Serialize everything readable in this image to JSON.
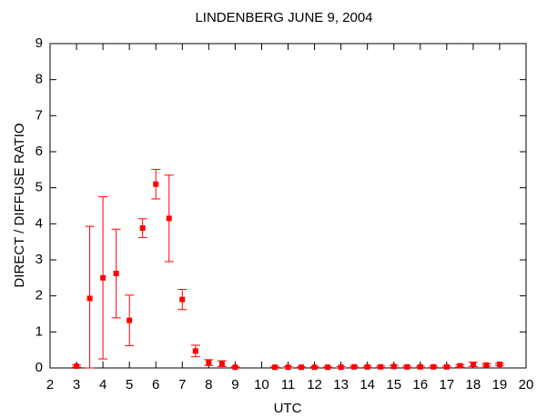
{
  "chart_data": {
    "type": "scatter",
    "title": "LINDENBERG JUNE 9, 2004",
    "x_label": "UTC",
    "y_label": "DIRECT / DIFFUSE RATIO",
    "x": [
      3,
      3.5,
      4,
      4.5,
      5,
      5.5,
      6,
      6.5,
      7,
      7.5,
      8,
      8.5,
      9,
      10.5,
      11,
      11.5,
      12,
      12.5,
      13,
      13.5,
      14,
      14.5,
      15,
      15.5,
      16,
      16.5,
      17,
      17.5,
      18,
      18.5,
      19
    ],
    "values": [
      0.05,
      1.93,
      2.5,
      2.62,
      1.32,
      3.88,
      5.1,
      4.15,
      1.9,
      0.47,
      0.15,
      0.12,
      0.02,
      0.02,
      0.02,
      0.02,
      0.02,
      0.02,
      0.02,
      0.03,
      0.03,
      0.03,
      0.04,
      0.03,
      0.03,
      0.03,
      0.03,
      0.06,
      0.1,
      0.08,
      0.1
    ],
    "errors": [
      0.03,
      2.0,
      2.25,
      1.23,
      0.7,
      0.26,
      0.41,
      1.2,
      0.28,
      0.16,
      0.08,
      0.08,
      0.01,
      0.01,
      0.02,
      0.01,
      0.01,
      0.01,
      0.02,
      0.02,
      0.02,
      0.02,
      0.03,
      0.02,
      0.02,
      0.02,
      0.02,
      0.03,
      0.06,
      0.03,
      0.03
    ],
    "color": "#ff0000",
    "xlim": [
      2,
      20
    ],
    "xticks": [
      2,
      3,
      4,
      5,
      6,
      7,
      8,
      9,
      10,
      11,
      12,
      13,
      14,
      15,
      16,
      17,
      18,
      19,
      20
    ],
    "ylim": [
      0,
      9
    ],
    "yticks": [
      0,
      1,
      2,
      3,
      4,
      5,
      6,
      7,
      8,
      9
    ]
  }
}
